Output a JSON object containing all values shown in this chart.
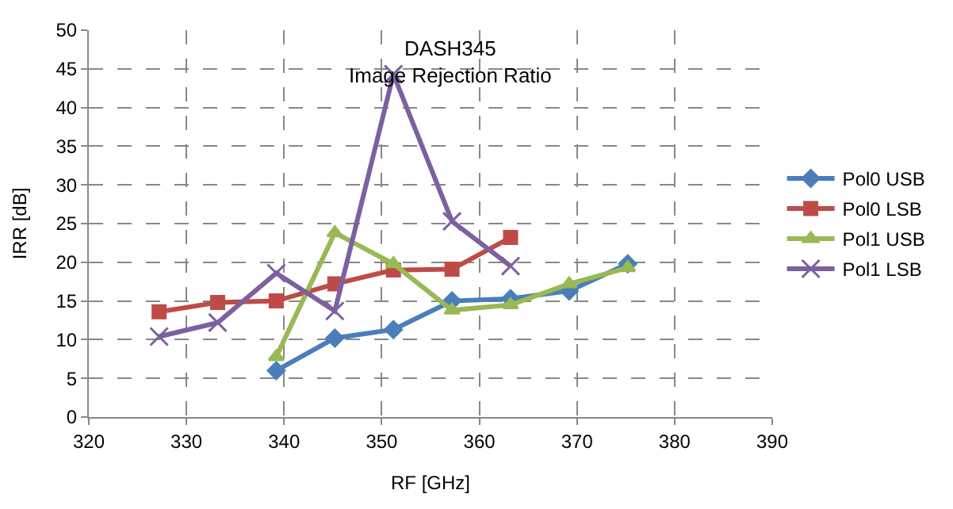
{
  "chart_data": {
    "type": "line",
    "title": "DASH345\nImage Rejection Ratio",
    "xlabel": "RF [GHz]",
    "ylabel": "IRR [dB]",
    "xlim": [
      320,
      390
    ],
    "xticks": [
      320,
      330,
      340,
      350,
      360,
      370,
      380,
      390
    ],
    "ylim": [
      0,
      50
    ],
    "yticks": [
      0,
      5,
      10,
      15,
      20,
      25,
      30,
      35,
      40,
      45,
      50
    ],
    "grid": true,
    "legend": "right",
    "line_style": "solid",
    "series": [
      {
        "name": "Pol0 USB",
        "color": "#4a7ebb",
        "marker": "diamond",
        "x": [
          339.2,
          345.2,
          351.2,
          357.2,
          363.2,
          369.2,
          375.2
        ],
        "values": [
          6,
          10.2,
          11.3,
          15,
          15.3,
          16.3,
          19.8
        ]
      },
      {
        "name": "Pol0 LSB",
        "color": "#be4b48",
        "marker": "square",
        "x": [
          327.2,
          333.2,
          339.2,
          345.2,
          351.2,
          357.2,
          363.2
        ],
        "values": [
          13.6,
          14.8,
          15,
          17.2,
          19,
          19.1,
          23.2
        ]
      },
      {
        "name": "Pol1 USB",
        "color": "#98b954",
        "marker": "triangle",
        "x": [
          339.2,
          345.2,
          351.2,
          357.2,
          363.2,
          369.2,
          375.2
        ],
        "values": [
          7.8,
          23.8,
          19.8,
          13.8,
          14.5,
          17.2,
          19.3
        ]
      },
      {
        "name": "Pol1 LSB",
        "color": "#7d60a0",
        "marker": "cross",
        "x": [
          327.2,
          333.2,
          339.2,
          345.2,
          351.2,
          357.2,
          363.2
        ],
        "values": [
          10.4,
          12.2,
          18.6,
          13.7,
          44.3,
          25.3,
          19.5
        ]
      }
    ]
  }
}
